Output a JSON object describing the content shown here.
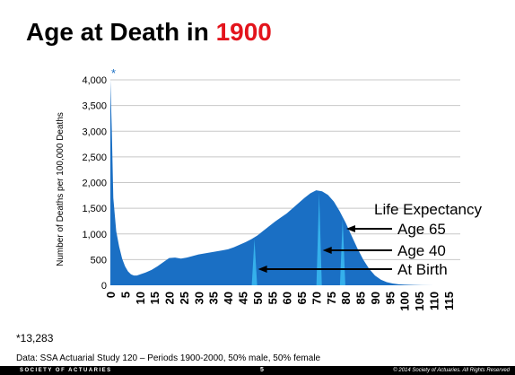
{
  "slide": {
    "title_prefix": "Age at Death in ",
    "title_year": "1900",
    "title_year_color": "#e3141c",
    "footnote": "*13,283",
    "source": "Data: SSA Actuarial Study 120 – Periods 1900-2000, 50% male, 50% female",
    "footer_org": "SOCIETY OF ACTUARIES",
    "footer_page": "5",
    "footer_copyright": "© 2014 Society of Actuaries. All Rights Reserved"
  },
  "chart_data": {
    "type": "area",
    "title": "",
    "xlabel": "",
    "ylabel": "Number of Deaths per 100,000 Deaths",
    "ylim": [
      0,
      4000
    ],
    "xlim": [
      0,
      119
    ],
    "yticks": [
      "0",
      "500",
      "1,000",
      "1,500",
      "2,000",
      "2,500",
      "3,000",
      "3,500",
      "4,000"
    ],
    "ytick_values": [
      0,
      500,
      1000,
      1500,
      2000,
      2500,
      3000,
      3500,
      4000
    ],
    "xticks": [
      "0",
      "5",
      "10",
      "15",
      "20",
      "25",
      "30",
      "35",
      "40",
      "45",
      "50",
      "55",
      "60",
      "65",
      "70",
      "75",
      "80",
      "85",
      "90",
      "95",
      "100",
      "105",
      "110",
      "115"
    ],
    "xtick_values": [
      0,
      5,
      10,
      15,
      20,
      25,
      30,
      35,
      40,
      45,
      50,
      55,
      60,
      65,
      70,
      75,
      80,
      85,
      90,
      95,
      100,
      105,
      110,
      115
    ],
    "grid": true,
    "fill_color": "#1a6fc4",
    "highlight_color": "#39b7f0",
    "clip_marker": "*",
    "series": [
      {
        "x": [
          0,
          0.5,
          1,
          2,
          3,
          4,
          5,
          6,
          7,
          8,
          9,
          10,
          12,
          14,
          16,
          18,
          20,
          22,
          24,
          26,
          28,
          30,
          32,
          34,
          36,
          38,
          40,
          42,
          44,
          46,
          48,
          50,
          52,
          54,
          56,
          58,
          60,
          62,
          64,
          66,
          68,
          70,
          72,
          74,
          76,
          78,
          80,
          82,
          84,
          86,
          88,
          90,
          92,
          94,
          96,
          98,
          100,
          103,
          106,
          110,
          115,
          119
        ],
        "values": [
          4000,
          3000,
          1700,
          1050,
          750,
          520,
          370,
          270,
          215,
          190,
          190,
          210,
          250,
          300,
          370,
          450,
          530,
          540,
          520,
          540,
          570,
          600,
          620,
          640,
          660,
          680,
          700,
          740,
          790,
          840,
          900,
          970,
          1060,
          1150,
          1240,
          1320,
          1400,
          1500,
          1600,
          1700,
          1790,
          1850,
          1830,
          1760,
          1630,
          1440,
          1220,
          970,
          720,
          500,
          320,
          190,
          110,
          60,
          35,
          20,
          12,
          6,
          3,
          1,
          0,
          0
        ]
      }
    ],
    "annotations": {
      "heading": "Life Expectancy",
      "labels": [
        "Age 65",
        "Age 40",
        "At Birth"
      ],
      "marker_ages": [
        79,
        71,
        49
      ]
    }
  }
}
